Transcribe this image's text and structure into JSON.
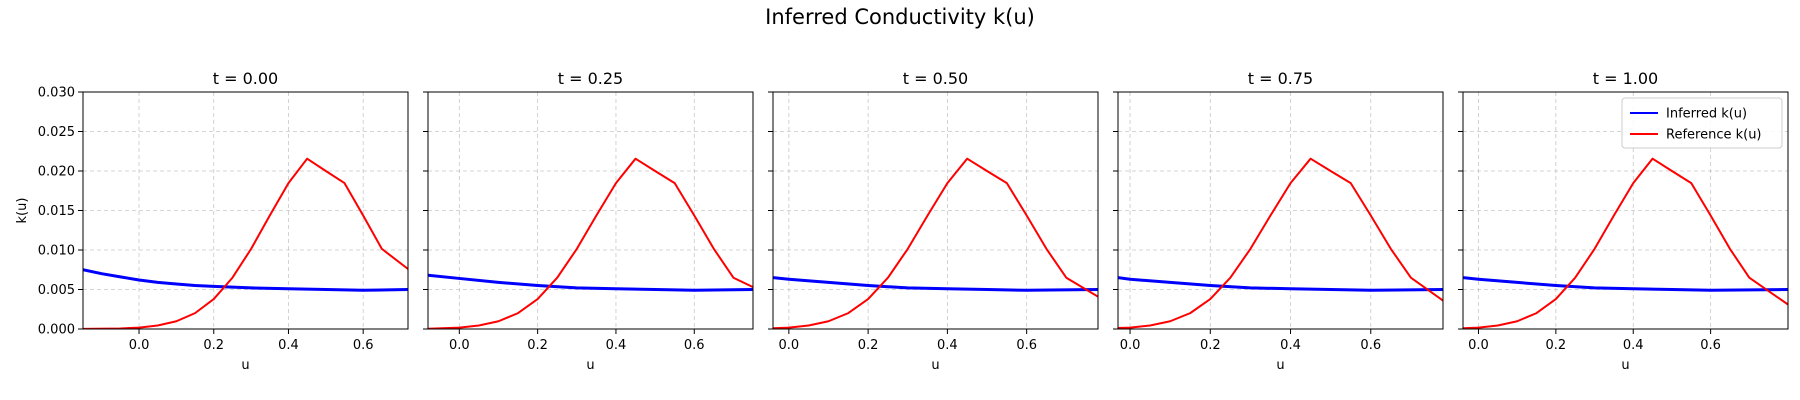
{
  "figure": {
    "title": "Inferred Conductivity k(u)"
  },
  "chart_data": [
    {
      "type": "line",
      "title": "t = 0.00",
      "xlabel": "u",
      "ylabel": "k(u)",
      "xlim": [
        -0.15,
        0.72
      ],
      "ylim": [
        0,
        0.03
      ],
      "xticks": [
        "0.0",
        "0.2",
        "0.4",
        "0.6"
      ],
      "yticks": [
        "0.000",
        "0.005",
        "0.010",
        "0.015",
        "0.020",
        "0.025",
        "0.030"
      ],
      "grid": true,
      "series": [
        {
          "color": "#0000ff",
          "x": [
            -0.15,
            -0.1,
            -0.05,
            0.0,
            0.05,
            0.1,
            0.15,
            0.2,
            0.3,
            0.4,
            0.5,
            0.6,
            0.72
          ],
          "y": [
            0.0075,
            0.007,
            0.0066,
            0.0062,
            0.0059,
            0.0057,
            0.0055,
            0.0054,
            0.0052,
            0.0051,
            0.005,
            0.0049,
            0.005
          ]
        },
        {
          "color": "#ff0000",
          "x": [
            -0.15,
            -0.05,
            0.0,
            0.05,
            0.1,
            0.15,
            0.2,
            0.25,
            0.3,
            0.35,
            0.4,
            0.45,
            0.5,
            0.55,
            0.6,
            0.65,
            0.72
          ],
          "y": [
            1e-05,
            7e-05,
            0.00018,
            0.00044,
            0.00098,
            0.00201,
            0.00379,
            0.00649,
            0.01014,
            0.01437,
            0.01847,
            0.02156,
            0.02,
            0.01847,
            0.01437,
            0.01014,
            0.0076
          ]
        }
      ]
    },
    {
      "type": "line",
      "title": "t = 0.25",
      "xlabel": "u",
      "ylabel": "",
      "xlim": [
        -0.08,
        0.75
      ],
      "ylim": [
        0,
        0.03
      ],
      "xticks": [
        "0.0",
        "0.2",
        "0.4",
        "0.6"
      ],
      "yticks": [
        "0.000",
        "0.005",
        "0.010",
        "0.015",
        "0.020",
        "0.025",
        "0.030"
      ],
      "grid": true,
      "series": [
        {
          "color": "#0000ff",
          "x": [
            -0.08,
            0.0,
            0.1,
            0.2,
            0.3,
            0.4,
            0.5,
            0.6,
            0.75
          ],
          "y": [
            0.0068,
            0.0064,
            0.0059,
            0.0055,
            0.0052,
            0.0051,
            0.005,
            0.0049,
            0.005
          ]
        },
        {
          "color": "#ff0000",
          "x": [
            -0.08,
            0.0,
            0.05,
            0.1,
            0.15,
            0.2,
            0.25,
            0.3,
            0.35,
            0.4,
            0.45,
            0.5,
            0.55,
            0.6,
            0.65,
            0.7,
            0.75
          ],
          "y": [
            3e-05,
            0.00018,
            0.00044,
            0.00098,
            0.00201,
            0.00379,
            0.00649,
            0.01014,
            0.01437,
            0.01847,
            0.02156,
            0.02,
            0.01847,
            0.01437,
            0.01014,
            0.00649,
            0.0053
          ]
        }
      ]
    },
    {
      "type": "line",
      "title": "t = 0.50",
      "xlabel": "u",
      "ylabel": "",
      "xlim": [
        -0.04,
        0.78
      ],
      "ylim": [
        0,
        0.03
      ],
      "xticks": [
        "0.0",
        "0.2",
        "0.4",
        "0.6"
      ],
      "yticks": [
        "0.000",
        "0.005",
        "0.010",
        "0.015",
        "0.020",
        "0.025",
        "0.030"
      ],
      "grid": true,
      "series": [
        {
          "color": "#0000ff",
          "x": [
            -0.04,
            0.0,
            0.1,
            0.2,
            0.3,
            0.4,
            0.5,
            0.6,
            0.78
          ],
          "y": [
            0.0065,
            0.0063,
            0.0059,
            0.0055,
            0.0052,
            0.0051,
            0.005,
            0.0049,
            0.005
          ]
        },
        {
          "color": "#ff0000",
          "x": [
            -0.04,
            0.0,
            0.05,
            0.1,
            0.15,
            0.2,
            0.25,
            0.3,
            0.35,
            0.4,
            0.45,
            0.5,
            0.55,
            0.6,
            0.65,
            0.7,
            0.78
          ],
          "y": [
            0.0001,
            0.00018,
            0.00044,
            0.00098,
            0.00201,
            0.00379,
            0.00649,
            0.01014,
            0.01437,
            0.01847,
            0.02156,
            0.02,
            0.01847,
            0.01437,
            0.01014,
            0.00649,
            0.0041
          ]
        }
      ]
    },
    {
      "type": "line",
      "title": "t = 0.75",
      "xlabel": "u",
      "ylabel": "",
      "xlim": [
        -0.03,
        0.78
      ],
      "ylim": [
        0,
        0.03
      ],
      "xticks": [
        "0.0",
        "0.2",
        "0.4",
        "0.6"
      ],
      "yticks": [
        "0.000",
        "0.005",
        "0.010",
        "0.015",
        "0.020",
        "0.025",
        "0.030"
      ],
      "grid": true,
      "series": [
        {
          "color": "#0000ff",
          "x": [
            -0.03,
            0.0,
            0.1,
            0.2,
            0.3,
            0.4,
            0.5,
            0.6,
            0.78
          ],
          "y": [
            0.0065,
            0.0063,
            0.0059,
            0.0055,
            0.0052,
            0.0051,
            0.005,
            0.0049,
            0.005
          ]
        },
        {
          "color": "#ff0000",
          "x": [
            -0.03,
            0.0,
            0.05,
            0.1,
            0.15,
            0.2,
            0.25,
            0.3,
            0.35,
            0.4,
            0.45,
            0.5,
            0.55,
            0.6,
            0.65,
            0.7,
            0.78
          ],
          "y": [
            0.00012,
            0.00018,
            0.00044,
            0.00098,
            0.00201,
            0.00379,
            0.00649,
            0.01014,
            0.01437,
            0.01847,
            0.02156,
            0.02,
            0.01847,
            0.01437,
            0.01014,
            0.00649,
            0.0036
          ]
        }
      ]
    },
    {
      "type": "line",
      "title": "t = 1.00",
      "xlabel": "u",
      "ylabel": "",
      "xlim": [
        -0.04,
        0.8
      ],
      "ylim": [
        0,
        0.03
      ],
      "xticks": [
        "0.0",
        "0.2",
        "0.4",
        "0.6"
      ],
      "yticks": [
        "0.000",
        "0.005",
        "0.010",
        "0.015",
        "0.020",
        "0.025",
        "0.030"
      ],
      "grid": true,
      "legend": {
        "placement": "top-right",
        "entries": [
          "Inferred k(u)",
          "Reference k(u)"
        ]
      },
      "series": [
        {
          "name": "Inferred k(u)",
          "color": "#0000ff",
          "x": [
            -0.04,
            0.0,
            0.1,
            0.2,
            0.3,
            0.4,
            0.5,
            0.6,
            0.8
          ],
          "y": [
            0.0065,
            0.0063,
            0.0059,
            0.0055,
            0.0052,
            0.0051,
            0.005,
            0.0049,
            0.005
          ]
        },
        {
          "name": "Reference k(u)",
          "color": "#ff0000",
          "x": [
            -0.04,
            0.0,
            0.05,
            0.1,
            0.15,
            0.2,
            0.25,
            0.3,
            0.35,
            0.4,
            0.45,
            0.5,
            0.55,
            0.6,
            0.65,
            0.7,
            0.8
          ],
          "y": [
            0.0001,
            0.00018,
            0.00044,
            0.00098,
            0.00201,
            0.00379,
            0.00649,
            0.01014,
            0.01437,
            0.01847,
            0.02156,
            0.02,
            0.01847,
            0.01437,
            0.01014,
            0.00649,
            0.0031
          ]
        }
      ]
    }
  ]
}
